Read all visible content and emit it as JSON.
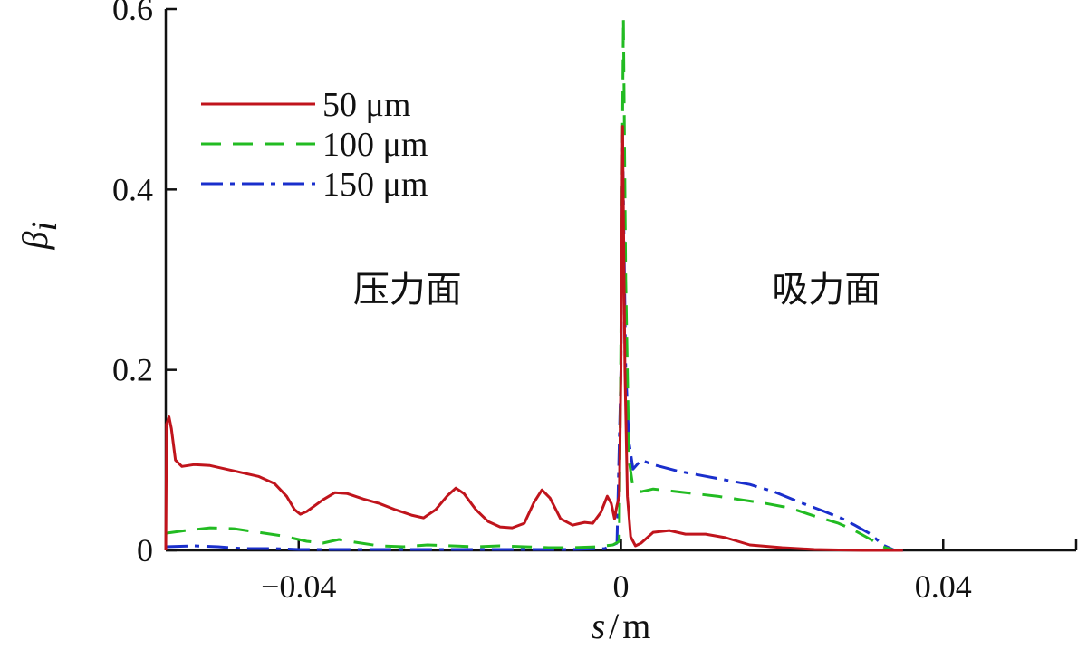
{
  "chart_data": {
    "type": "line",
    "title": "",
    "xlabel": {
      "symbol": "s",
      "sep": "/",
      "unit": "m"
    },
    "ylabel": {
      "symbol": "β",
      "sub": "i"
    },
    "xlim": [
      -0.0565,
      0.0565
    ],
    "ylim": [
      0,
      0.6
    ],
    "x_ticks": [
      {
        "value": -0.04,
        "label": "−0.04"
      },
      {
        "value": 0,
        "label": "0"
      },
      {
        "value": 0.04,
        "label": "0.04"
      }
    ],
    "y_ticks": [
      {
        "value": 0,
        "label": "0"
      },
      {
        "value": 0.2,
        "label": "0.2"
      },
      {
        "value": 0.4,
        "label": "0.4"
      },
      {
        "value": 0.6,
        "label": "0.6"
      }
    ],
    "grid": false,
    "legend_position": "top-left",
    "annotations": [
      {
        "text": "压力面",
        "x": -0.0265,
        "y": 0.29
      },
      {
        "text": "吸力面",
        "x": 0.0255,
        "y": 0.29
      }
    ],
    "series": [
      {
        "name": "50 μm",
        "color": "#c0141c",
        "dash": "solid",
        "points": [
          [
            -0.0565,
            0.0
          ],
          [
            -0.0564,
            0.14
          ],
          [
            -0.0561,
            0.148
          ],
          [
            -0.0558,
            0.135
          ],
          [
            -0.0553,
            0.1
          ],
          [
            -0.0545,
            0.093
          ],
          [
            -0.053,
            0.095
          ],
          [
            -0.051,
            0.094
          ],
          [
            -0.049,
            0.09
          ],
          [
            -0.047,
            0.086
          ],
          [
            -0.045,
            0.082
          ],
          [
            -0.043,
            0.074
          ],
          [
            -0.0415,
            0.06
          ],
          [
            -0.0405,
            0.045
          ],
          [
            -0.0398,
            0.04
          ],
          [
            -0.039,
            0.043
          ],
          [
            -0.037,
            0.056
          ],
          [
            -0.0355,
            0.064
          ],
          [
            -0.034,
            0.063
          ],
          [
            -0.032,
            0.057
          ],
          [
            -0.03,
            0.052
          ],
          [
            -0.028,
            0.045
          ],
          [
            -0.026,
            0.039
          ],
          [
            -0.0245,
            0.036
          ],
          [
            -0.023,
            0.045
          ],
          [
            -0.0215,
            0.061
          ],
          [
            -0.0205,
            0.069
          ],
          [
            -0.0195,
            0.063
          ],
          [
            -0.018,
            0.045
          ],
          [
            -0.0165,
            0.032
          ],
          [
            -0.015,
            0.026
          ],
          [
            -0.0135,
            0.025
          ],
          [
            -0.012,
            0.03
          ],
          [
            -0.0108,
            0.053
          ],
          [
            -0.0098,
            0.067
          ],
          [
            -0.0088,
            0.058
          ],
          [
            -0.0075,
            0.035
          ],
          [
            -0.006,
            0.028
          ],
          [
            -0.0045,
            0.031
          ],
          [
            -0.0035,
            0.03
          ],
          [
            -0.0025,
            0.042
          ],
          [
            -0.0017,
            0.06
          ],
          [
            -0.0012,
            0.052
          ],
          [
            -0.0008,
            0.035
          ],
          [
            -0.0005,
            0.05
          ],
          [
            -0.0002,
            0.06
          ],
          [
            0.0,
            0.2
          ],
          [
            0.0002,
            0.47
          ],
          [
            0.0005,
            0.2
          ],
          [
            0.0008,
            0.06
          ],
          [
            0.0012,
            0.015
          ],
          [
            0.0018,
            0.005
          ],
          [
            0.0025,
            0.008
          ],
          [
            0.004,
            0.02
          ],
          [
            0.006,
            0.022
          ],
          [
            0.008,
            0.018
          ],
          [
            0.0105,
            0.018
          ],
          [
            0.013,
            0.014
          ],
          [
            0.016,
            0.006
          ],
          [
            0.02,
            0.003
          ],
          [
            0.024,
            0.001
          ],
          [
            0.03,
            0.0
          ],
          [
            0.035,
            0.0
          ]
        ]
      },
      {
        "name": "100 μm",
        "color": "#22bb22",
        "dash": "22,13",
        "points": [
          [
            -0.0565,
            0.019
          ],
          [
            -0.054,
            0.022
          ],
          [
            -0.051,
            0.025
          ],
          [
            -0.048,
            0.024
          ],
          [
            -0.045,
            0.02
          ],
          [
            -0.042,
            0.016
          ],
          [
            -0.039,
            0.01
          ],
          [
            -0.037,
            0.008
          ],
          [
            -0.035,
            0.012
          ],
          [
            -0.033,
            0.009
          ],
          [
            -0.03,
            0.005
          ],
          [
            -0.027,
            0.004
          ],
          [
            -0.024,
            0.006
          ],
          [
            -0.021,
            0.005
          ],
          [
            -0.018,
            0.004
          ],
          [
            -0.015,
            0.005
          ],
          [
            -0.012,
            0.004
          ],
          [
            -0.009,
            0.003
          ],
          [
            -0.006,
            0.003
          ],
          [
            -0.003,
            0.004
          ],
          [
            -0.001,
            0.006
          ],
          [
            -0.0002,
            0.01
          ],
          [
            0.0,
            0.25
          ],
          [
            0.0003,
            0.59
          ],
          [
            0.0006,
            0.3
          ],
          [
            0.001,
            0.1
          ],
          [
            0.0015,
            0.07
          ],
          [
            0.0025,
            0.065
          ],
          [
            0.004,
            0.068
          ],
          [
            0.006,
            0.066
          ],
          [
            0.009,
            0.063
          ],
          [
            0.012,
            0.06
          ],
          [
            0.015,
            0.056
          ],
          [
            0.018,
            0.052
          ],
          [
            0.021,
            0.047
          ],
          [
            0.024,
            0.038
          ],
          [
            0.027,
            0.03
          ],
          [
            0.029,
            0.022
          ],
          [
            0.031,
            0.012
          ],
          [
            0.0325,
            0.004
          ],
          [
            0.034,
            0.0
          ]
        ]
      },
      {
        "name": "150 μm",
        "color": "#1a2fcc",
        "dash": "24,8,5,8",
        "points": [
          [
            -0.0565,
            0.004
          ],
          [
            -0.053,
            0.005
          ],
          [
            -0.05,
            0.004
          ],
          [
            -0.047,
            0.002
          ],
          [
            -0.043,
            0.002
          ],
          [
            -0.04,
            0.001
          ],
          [
            -0.036,
            0.001
          ],
          [
            -0.03,
            0.001
          ],
          [
            -0.024,
            0.001
          ],
          [
            -0.018,
            0.001
          ],
          [
            -0.012,
            0.001
          ],
          [
            -0.006,
            0.001
          ],
          [
            -0.002,
            0.002
          ],
          [
            -0.0005,
            0.008
          ],
          [
            0.0,
            0.2
          ],
          [
            0.0002,
            0.46
          ],
          [
            0.0006,
            0.2
          ],
          [
            0.001,
            0.12
          ],
          [
            0.0015,
            0.09
          ],
          [
            0.0025,
            0.1
          ],
          [
            0.004,
            0.095
          ],
          [
            0.007,
            0.088
          ],
          [
            0.01,
            0.083
          ],
          [
            0.013,
            0.078
          ],
          [
            0.016,
            0.073
          ],
          [
            0.019,
            0.065
          ],
          [
            0.022,
            0.054
          ],
          [
            0.025,
            0.044
          ],
          [
            0.0275,
            0.035
          ],
          [
            0.029,
            0.028
          ],
          [
            0.031,
            0.018
          ],
          [
            0.0325,
            0.006
          ],
          [
            0.034,
            0.0
          ],
          [
            0.035,
            0.0
          ]
        ]
      }
    ]
  }
}
